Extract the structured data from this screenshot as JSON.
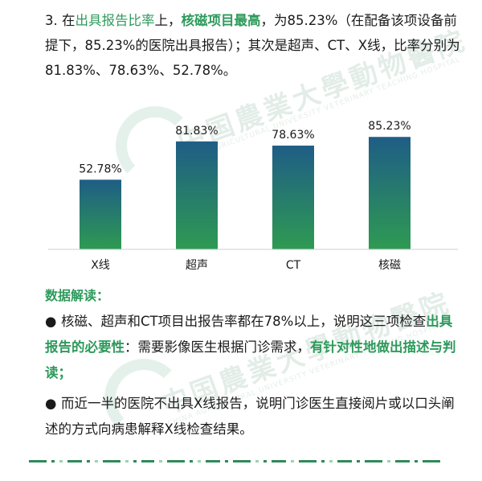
{
  "intro": {
    "prefix": "3. 在",
    "hl1": "出具报告比率",
    "mid1": "上，",
    "hl2": "核磁项目最高",
    "rest": "，为85.23%（在配备该项设备前提下，85.23%的医院出具报告）；其次是超声、CT、X线，比率分别为81.83%、78.63%、52.78%。"
  },
  "chart_data": {
    "type": "bar",
    "categories": [
      "X线",
      "超声",
      "CT",
      "核磁"
    ],
    "values": [
      52.78,
      81.83,
      78.63,
      85.23
    ],
    "value_labels": [
      "52.78%",
      "81.83%",
      "78.63%",
      "85.23%"
    ],
    "title": "",
    "xlabel": "",
    "ylabel": "",
    "grid": false,
    "legend": "none",
    "bar_gradient": {
      "top": "#1f5d86",
      "bottom": "#2e9a52"
    },
    "axis_color": "#cfcfcf"
  },
  "section_title": "数据解读：",
  "bullets": [
    {
      "marker": "●",
      "text1": "核磁、超声和CT项目出报告率都在78%以上，说明这三项检查",
      "hl1": "出具报告的必要性",
      "text2": "：需要影像医生根据门诊需求，",
      "hl2": "有针对性地做出描述与判读；"
    },
    {
      "marker": "●",
      "text1": "而近一半的医院不出具X线报告，说明门诊医生直接阅片或以口头阐述的方式向病患解释X线检查结果。"
    }
  ],
  "watermark": {
    "line1": "中国農業大學動物醫院",
    "line2": "CHINA AGRICULTURAL UNIVERSITY VETERINARY TEACHING HOSPITAL",
    "color": "#2e7d57"
  },
  "colors": {
    "accent_green": "#2e9a5c",
    "dash_dark": "#2e8a5a",
    "dash_light": "#9bd3b3"
  }
}
